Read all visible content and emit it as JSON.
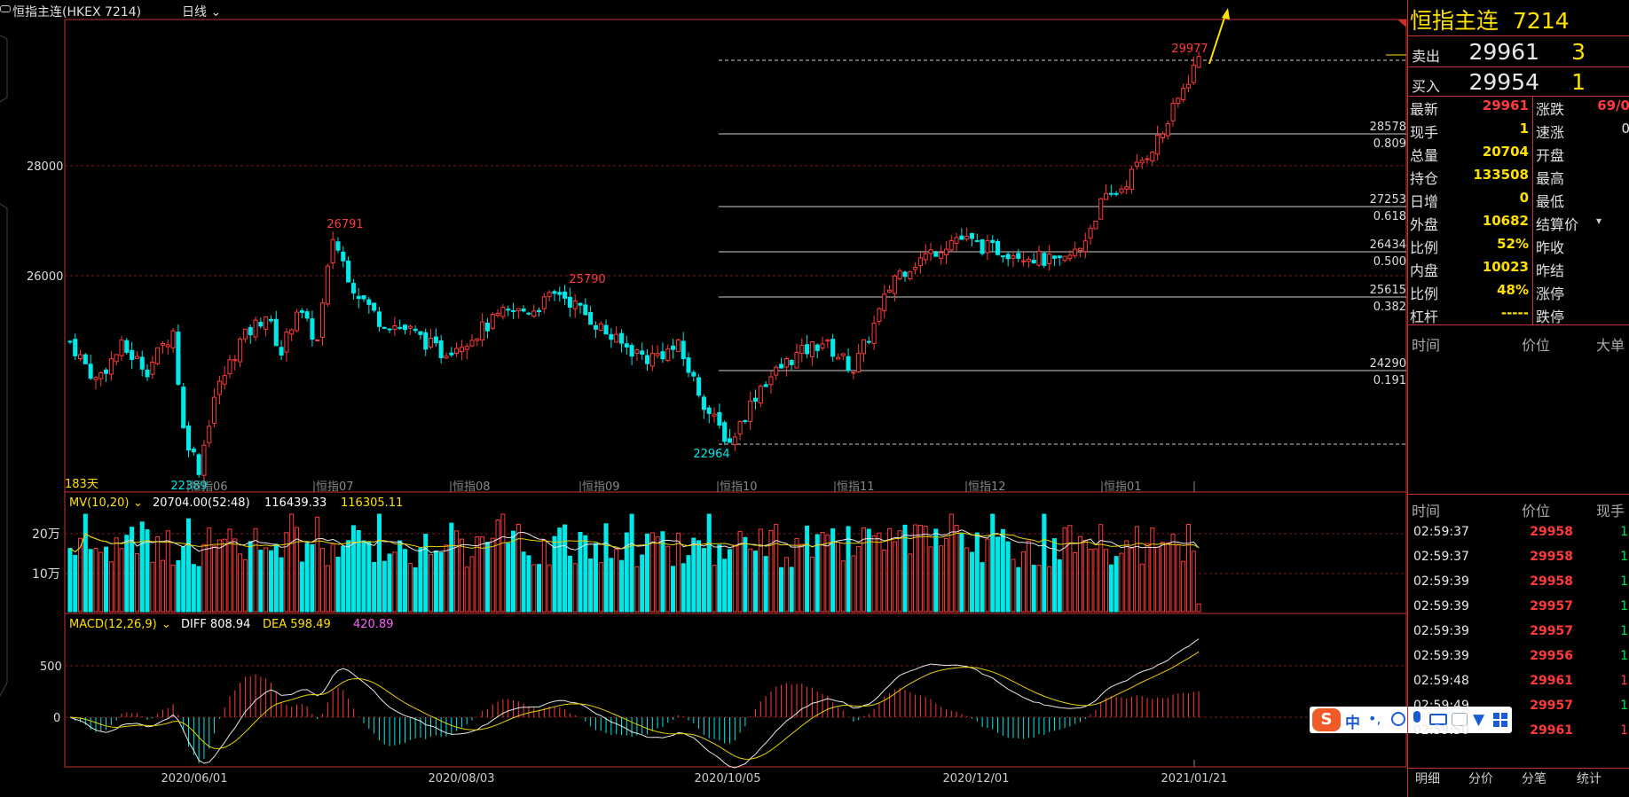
{
  "header": {
    "title": "恒指主连(HKEX 7214)",
    "period": "日线"
  },
  "main_chart": {
    "y_ticks": [
      "28000",
      "26000"
    ],
    "peak_labels": {
      "high_left": "26791",
      "mid": "25790",
      "top": "29977"
    },
    "low_labels": {
      "low_left": "22389",
      "low_mid": "22964"
    },
    "fib_levels": [
      {
        "price": "28578",
        "ratio": "0.809"
      },
      {
        "price": "27253",
        "ratio": "0.618"
      },
      {
        "price": "26434",
        "ratio": "0.500"
      },
      {
        "price": "25615",
        "ratio": "0.382"
      },
      {
        "price": "24290",
        "ratio": "0.191"
      }
    ],
    "days_label": "183天",
    "month_labels": [
      "恒指06",
      "恒指07",
      "恒指08",
      "恒指09",
      "恒指10",
      "恒指11",
      "恒指12",
      "恒指01"
    ]
  },
  "volume_panel": {
    "title": "MV(10,20)",
    "vol": "20704.00(52:48)",
    "mv10": "116439.33",
    "mv20": "116305.11",
    "y_ticks": [
      "20万",
      "10万"
    ]
  },
  "macd_panel": {
    "title": "MACD(12,26,9)",
    "diff": "DIFF 808.94",
    "dea": "DEA 598.49",
    "macd": "420.89",
    "y_ticks": [
      "500",
      "0"
    ]
  },
  "x_axis_dates": [
    "2020/06/01",
    "2020/08/03",
    "2020/10/05",
    "2020/12/01",
    "2021/01/21"
  ],
  "quote": {
    "name": "恒指主连",
    "code": "7214",
    "ask_label": "卖出",
    "ask_price": "29961",
    "ask_qty": "3",
    "bid_label": "买入",
    "bid_price": "29954",
    "bid_qty": "1",
    "rows": [
      {
        "l1": "最新",
        "v1": "29961",
        "l2": "涨跌",
        "v2": "69/0"
      },
      {
        "l1": "现手",
        "v1": "1",
        "l2": "速涨",
        "v2": "0"
      },
      {
        "l1": "总量",
        "v1": "20704",
        "l2": "开盘",
        "v2": ""
      },
      {
        "l1": "持仓",
        "v1": "133508",
        "l2": "最高",
        "v2": ""
      },
      {
        "l1": "日增",
        "v1": "0",
        "l2": "最低",
        "v2": ""
      },
      {
        "l1": "外盘",
        "v1": "10682",
        "l2": "结算价",
        "v2": ""
      },
      {
        "l1": "比例",
        "v1": "52%",
        "l2": "昨收",
        "v2": ""
      },
      {
        "l1": "内盘",
        "v1": "10023",
        "l2": "昨结",
        "v2": ""
      },
      {
        "l1": "比例",
        "v1": "48%",
        "l2": "涨停",
        "v2": ""
      },
      {
        "l1": "杠杆",
        "v1": "-----",
        "l2": "跌停",
        "v2": ""
      }
    ],
    "big_header": {
      "time": "时间",
      "price": "价位",
      "size": "大单"
    },
    "tick_header": {
      "time": "时间",
      "price": "价位",
      "size": "现手"
    },
    "ticks": [
      {
        "time": "02:59:37",
        "price": "29958",
        "size": "1"
      },
      {
        "time": "02:59:37",
        "price": "29958",
        "size": "1"
      },
      {
        "time": "02:59:39",
        "price": "29958",
        "size": "1"
      },
      {
        "time": "02:59:39",
        "price": "29957",
        "size": "1"
      },
      {
        "time": "02:59:39",
        "price": "29957",
        "size": "1"
      },
      {
        "time": "02:59:39",
        "price": "29956",
        "size": "1"
      },
      {
        "time": "02:59:48",
        "price": "29961",
        "size": "1"
      },
      {
        "time": "02:59:49",
        "price": "29957",
        "size": "1"
      },
      {
        "time": "02:59:50",
        "price": "29961",
        "size": "1"
      }
    ],
    "tabs": [
      "明细",
      "分价",
      "分笔",
      "统计"
    ]
  },
  "ime": {
    "label": "中"
  },
  "colors": {
    "up": "#ff3a3a",
    "down": "#00e8e8",
    "grid": "#8a1a1a",
    "border": "#c83030",
    "label": "#ffe000"
  }
}
